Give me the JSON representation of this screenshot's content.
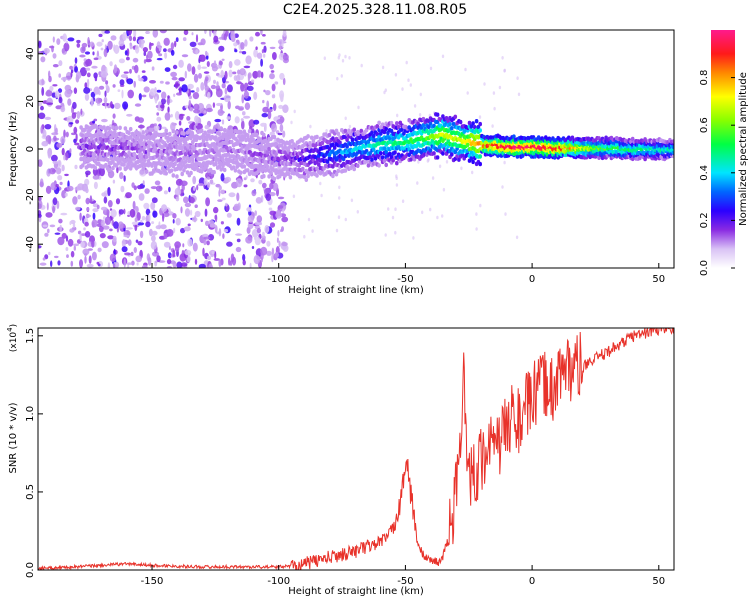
{
  "title": "C2E4.2025.328.11.08.R05",
  "spectrogram": {
    "xlabel": "Height of straight line (km)",
    "ylabel": "Frequency (Hz)",
    "xlim": [
      -195,
      56
    ],
    "ylim": [
      -50,
      50
    ],
    "xticks": [
      "-150",
      "-100",
      "-50",
      "0",
      "50"
    ],
    "xtick_values": [
      -150,
      -100,
      -50,
      0,
      50
    ],
    "yticks": [
      "-40",
      "-20",
      "0",
      "20",
      "40"
    ],
    "ytick_values": [
      -40,
      -20,
      0,
      20,
      40
    ],
    "colorbar": {
      "label": "Normalized spectral amplitude",
      "ticks": [
        "0.0",
        "0.2",
        "0.4",
        "0.6",
        "0.8"
      ],
      "tick_values": [
        0.0,
        0.2,
        0.4,
        0.6,
        0.8
      ],
      "range": [
        0,
        1
      ]
    }
  },
  "chart_data": [
    {
      "type": "heatmap",
      "title": "C2E4.2025.328.11.08.R05",
      "xlabel": "Height of straight line (km)",
      "ylabel": "Frequency (Hz)",
      "xlim": [
        -195,
        56
      ],
      "ylim": [
        -50,
        50
      ],
      "colorbar_label": "Normalized spectral amplitude",
      "colorbar_range": [
        0,
        1
      ],
      "ridge_center": {
        "x": [
          -175,
          -160,
          -140,
          -120,
          -100,
          -90,
          -80,
          -70,
          -60,
          -50,
          -40,
          -35,
          -30,
          -20,
          -10,
          0,
          10,
          20,
          30,
          40,
          50,
          56
        ],
        "freq": [
          1,
          0,
          -2,
          0,
          -4,
          -4,
          -2,
          0,
          2,
          3,
          5,
          6,
          4,
          2,
          1,
          1,
          0.5,
          0.5,
          0.5,
          0,
          0,
          0
        ],
        "amplitude": [
          0.15,
          0.15,
          0.12,
          0.1,
          0.15,
          0.2,
          0.3,
          0.4,
          0.45,
          0.5,
          0.6,
          0.7,
          0.65,
          0.85,
          0.95,
          0.95,
          0.9,
          0.7,
          0.55,
          0.5,
          0.45,
          0.45
        ]
      }
    },
    {
      "type": "line",
      "xlabel": "Height of straight line (km)",
      "ylabel": "SNR (10 * v/v)",
      "y_multiplier": "(x10",
      "y_multiplier_exp": "4",
      "xlim": [
        -195,
        56
      ],
      "ylim": [
        0,
        1.55
      ],
      "xticks": [
        "-150",
        "-100",
        "-50",
        "0",
        "50"
      ],
      "xtick_values": [
        -150,
        -100,
        -50,
        0,
        50
      ],
      "yticks": [
        "0.0",
        "0.5",
        "1.0",
        "1.5"
      ],
      "ytick_values": [
        0.0,
        0.5,
        1.0,
        1.5
      ],
      "color": "#e8322a",
      "series": [
        {
          "name": "SNR",
          "x": [
            -195,
            -180,
            -170,
            -160,
            -150,
            -130,
            -110,
            -100,
            -92,
            -85,
            -80,
            -75,
            -70,
            -65,
            -60,
            -55,
            -52,
            -50,
            -48,
            -45,
            -42,
            -40,
            -36,
            -33,
            -30,
            -28,
            -27,
            -26,
            -25,
            -24,
            -22,
            -20,
            -18,
            -15,
            -12,
            -10,
            -8,
            -5,
            -2,
            0,
            3,
            5,
            8,
            10,
            15,
            20,
            25,
            30,
            35,
            40,
            45,
            50,
            56
          ],
          "y": [
            0.01,
            0.02,
            0.03,
            0.04,
            0.03,
            0.02,
            0.02,
            0.02,
            0.03,
            0.06,
            0.08,
            0.1,
            0.12,
            0.15,
            0.18,
            0.25,
            0.45,
            0.7,
            0.5,
            0.15,
            0.08,
            0.06,
            0.05,
            0.2,
            0.5,
            0.8,
            1.3,
            0.9,
            0.7,
            0.6,
            0.65,
            0.7,
            0.8,
            0.75,
            0.85,
            0.9,
            1.0,
            0.95,
            1.05,
            1.1,
            1.15,
            1.2,
            1.15,
            1.25,
            1.3,
            1.3,
            1.35,
            1.4,
            1.45,
            1.5,
            1.52,
            1.54,
            1.55
          ]
        }
      ]
    }
  ]
}
